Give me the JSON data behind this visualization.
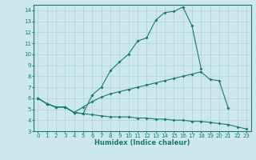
{
  "title": "",
  "xlabel": "Humidex (Indice chaleur)",
  "background_color": "#cce8ec",
  "line_color": "#1a7a6e",
  "grid_color": "#aacdd4",
  "xlim": [
    -0.5,
    23.5
  ],
  "ylim": [
    3,
    14.5
  ],
  "yticks": [
    3,
    4,
    5,
    6,
    7,
    8,
    9,
    10,
    11,
    12,
    13,
    14
  ],
  "xticks": [
    0,
    1,
    2,
    3,
    4,
    5,
    6,
    7,
    8,
    9,
    10,
    11,
    12,
    13,
    14,
    15,
    16,
    17,
    18,
    19,
    20,
    21,
    22,
    23
  ],
  "line1_x": [
    0,
    1,
    2,
    3,
    4,
    5,
    6,
    7,
    8,
    9,
    10,
    11,
    12,
    13,
    14,
    15,
    16,
    17,
    18
  ],
  "line1_y": [
    6.0,
    5.5,
    5.2,
    5.2,
    4.7,
    4.6,
    6.3,
    7.0,
    8.5,
    9.3,
    10.0,
    11.2,
    11.5,
    13.1,
    13.8,
    13.9,
    14.3,
    12.6,
    8.7
  ],
  "line2_x": [
    0,
    1,
    2,
    3,
    4,
    5,
    6,
    7,
    8,
    9,
    10,
    11,
    12,
    13,
    14,
    15,
    16,
    17,
    18,
    19,
    20,
    21
  ],
  "line2_y": [
    6.0,
    5.5,
    5.2,
    5.2,
    4.7,
    5.2,
    5.7,
    6.1,
    6.4,
    6.6,
    6.8,
    7.0,
    7.2,
    7.4,
    7.6,
    7.8,
    8.0,
    8.2,
    8.4,
    7.7,
    7.6,
    5.1
  ],
  "line3_x": [
    0,
    1,
    2,
    3,
    4,
    5,
    6,
    7,
    8,
    9,
    10,
    11,
    12,
    13,
    14,
    15,
    16,
    17,
    18,
    19,
    20,
    21,
    22,
    23
  ],
  "line3_y": [
    6.0,
    5.5,
    5.2,
    5.2,
    4.7,
    4.6,
    4.5,
    4.4,
    4.3,
    4.3,
    4.3,
    4.2,
    4.2,
    4.1,
    4.1,
    4.0,
    4.0,
    3.9,
    3.9,
    3.8,
    3.7,
    3.6,
    3.4,
    3.2
  ],
  "tick_fontsize": 5.0,
  "xlabel_fontsize": 6.0
}
